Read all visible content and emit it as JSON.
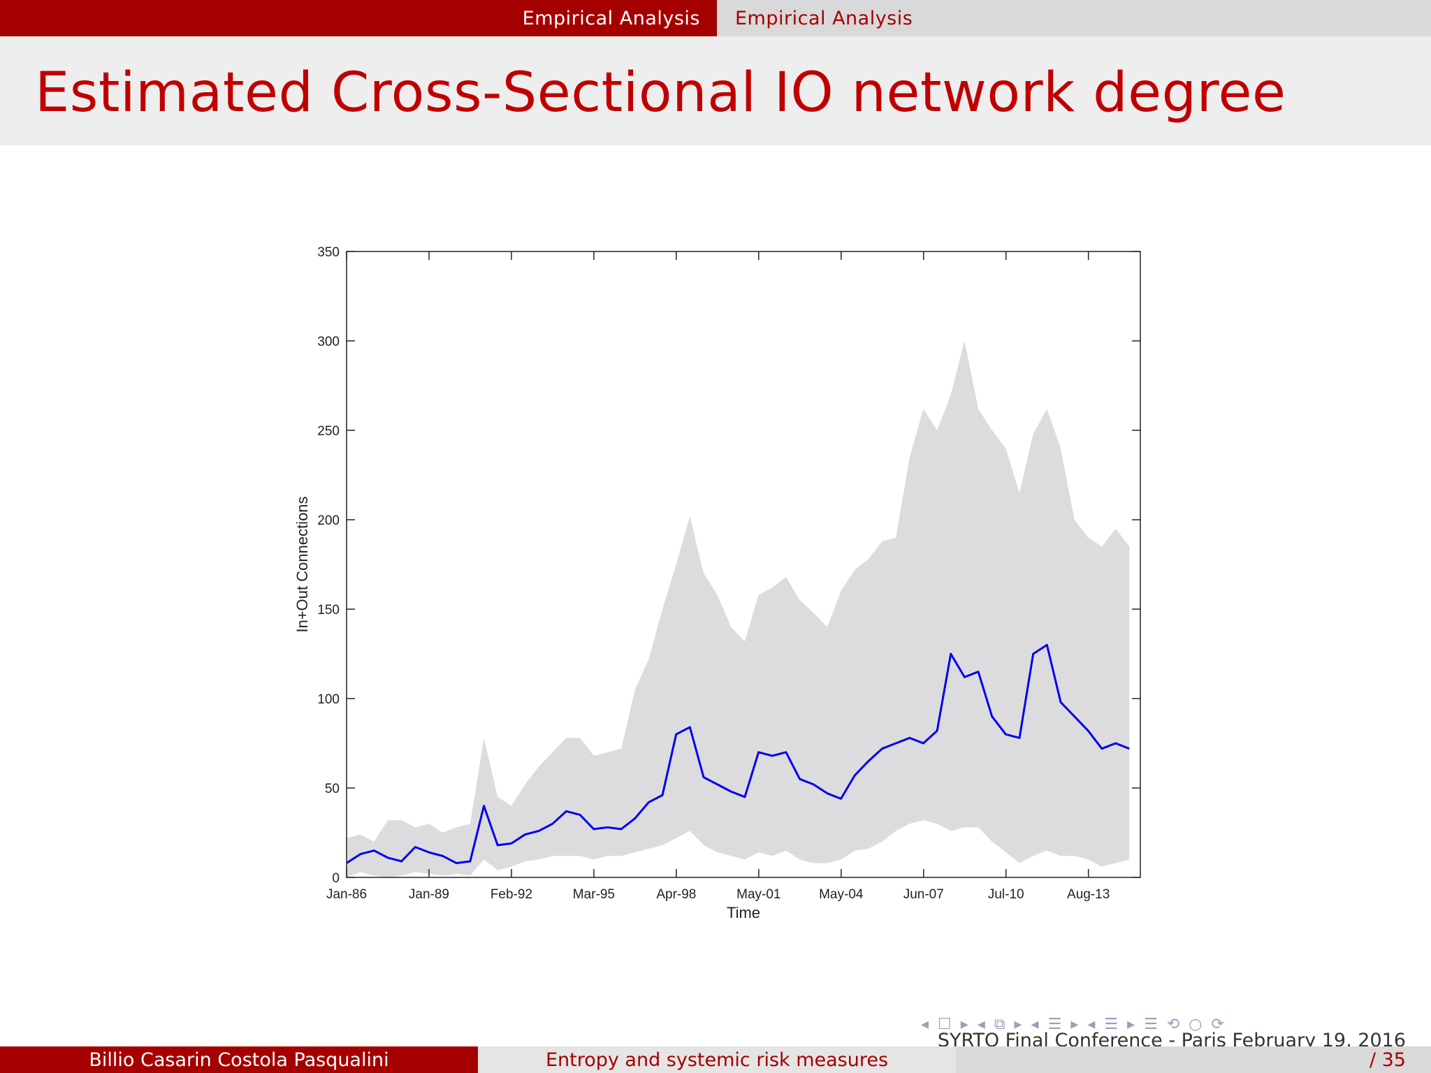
{
  "header": {
    "section_left": "Empirical Analysis",
    "section_right": "Empirical Analysis"
  },
  "slide": {
    "title": "Estimated Cross-Sectional IO network degree"
  },
  "chart_data": {
    "type": "area",
    "title": "",
    "xlabel": "Time",
    "ylabel": "In+Out Connections",
    "ylim": [
      0,
      350
    ],
    "yticks": [
      0,
      50,
      100,
      150,
      200,
      250,
      300,
      350
    ],
    "xticks": [
      "Jan-86",
      "Jan-89",
      "Feb-92",
      "Mar-95",
      "Apr-98",
      "May-01",
      "May-04",
      "Jun-07",
      "Jul-10",
      "Aug-13"
    ],
    "grid": false,
    "x": [
      "Jan-86",
      "Jul-86",
      "Jan-87",
      "Jul-87",
      "Jan-88",
      "Jul-88",
      "Jan-89",
      "Jul-89",
      "Jan-90",
      "Jul-90",
      "Jan-91",
      "Jul-91",
      "Jan-92",
      "Jul-92",
      "Jan-93",
      "Jul-93",
      "Jan-94",
      "Jul-94",
      "Jan-95",
      "Jul-95",
      "Jan-96",
      "Jul-96",
      "Jan-97",
      "Jul-97",
      "Jan-98",
      "Jul-98",
      "Jan-99",
      "Jul-99",
      "Jan-00",
      "Jul-00",
      "Jan-01",
      "Jul-01",
      "Jan-02",
      "Jul-02",
      "Jan-03",
      "Jul-03",
      "Jan-04",
      "Jul-04",
      "Jan-05",
      "Jul-05",
      "Jan-06",
      "Jul-06",
      "Jan-07",
      "Jul-07",
      "Jan-08",
      "Jul-08",
      "Jan-09",
      "Jul-09",
      "Jan-10",
      "Jul-10",
      "Jan-11",
      "Jul-11",
      "Jan-12",
      "Jul-12",
      "Jan-13",
      "Jul-13",
      "Jan-14",
      "Jul-14"
    ],
    "series": [
      {
        "role": "median",
        "color": "#0000ee",
        "values": [
          8,
          13,
          15,
          11,
          9,
          17,
          14,
          12,
          8,
          9,
          40,
          18,
          19,
          24,
          26,
          30,
          37,
          35,
          27,
          28,
          27,
          33,
          42,
          46,
          80,
          84,
          56,
          52,
          48,
          45,
          70,
          68,
          70,
          55,
          52,
          47,
          44,
          57,
          65,
          72,
          75,
          78,
          75,
          82,
          125,
          112,
          115,
          90,
          80,
          78,
          125,
          130,
          98,
          90,
          82,
          72,
          75,
          72
        ]
      },
      {
        "role": "band",
        "color": "#dcdcde",
        "upper": [
          22,
          24,
          20,
          32,
          32,
          28,
          30,
          25,
          28,
          30,
          78,
          45,
          40,
          52,
          62,
          70,
          78,
          78,
          68,
          70,
          72,
          105,
          122,
          150,
          175,
          202,
          170,
          158,
          140,
          132,
          158,
          162,
          168,
          155,
          148,
          140,
          160,
          172,
          178,
          188,
          190,
          235,
          262,
          250,
          270,
          300,
          262,
          250,
          240,
          215,
          248,
          262,
          240,
          200,
          190,
          185,
          195,
          185
        ],
        "lower": [
          0,
          3,
          1,
          0,
          1,
          3,
          2,
          1,
          2,
          1,
          10,
          4,
          6,
          9,
          10,
          12,
          12,
          12,
          10,
          12,
          12,
          14,
          16,
          18,
          22,
          26,
          18,
          14,
          12,
          10,
          14,
          12,
          15,
          10,
          8,
          8,
          10,
          15,
          16,
          20,
          26,
          30,
          32,
          30,
          26,
          28,
          28,
          20,
          14,
          8,
          12,
          15,
          12,
          12,
          10,
          6,
          8,
          10
        ]
      }
    ]
  },
  "nav": {
    "symbols": "◂ ☐ ▸ ◂ ⧉ ▸ ◂ ☰ ▸ ◂ ☰ ▸ ☰ ⟲ ○ ⟳"
  },
  "footer": {
    "authors": "Billio Casarin Costola Pasqualini",
    "talk_title": "Entropy and systemic risk measures",
    "conference": "SYRTO Final Conference - Paris February 19, 2016",
    "page": "/ 35"
  }
}
